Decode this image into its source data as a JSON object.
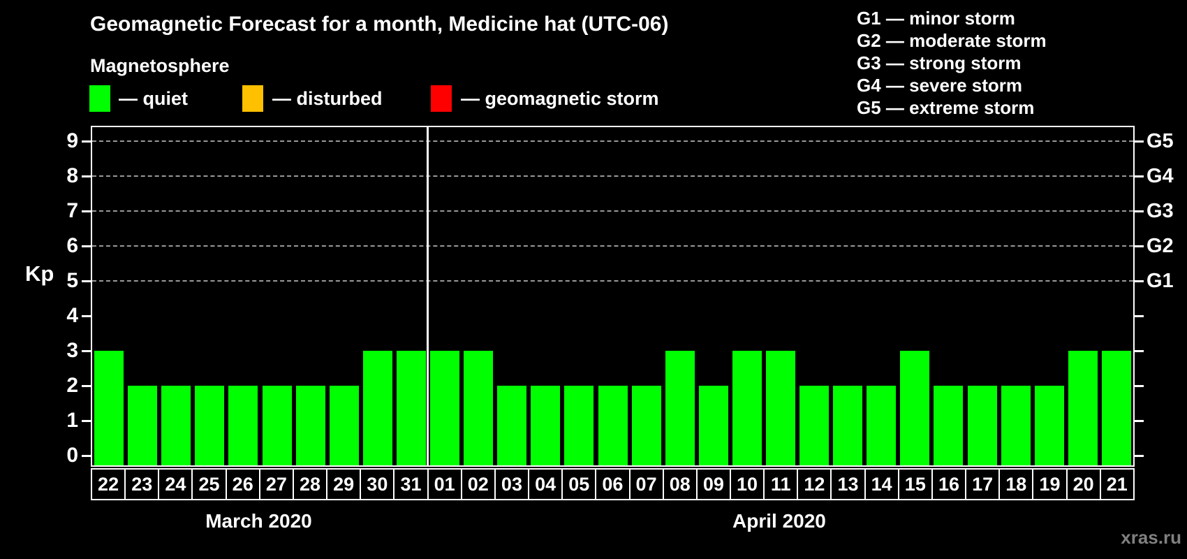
{
  "title": "Geomagnetic Forecast for a month, Medicine hat (UTC-06)",
  "legend": {
    "heading": "Magnetosphere",
    "items": [
      {
        "label": "— quiet",
        "color": "#00ff00"
      },
      {
        "label": "— disturbed",
        "color": "#ffc000"
      },
      {
        "label": "— geomagnetic storm",
        "color": "#ff0000"
      }
    ]
  },
  "g_legend": [
    "G1 — minor storm",
    "G2 — moderate storm",
    "G3 — strong storm",
    "G4 — severe storm",
    "G5 — extreme storm"
  ],
  "watermark": "xras.ru",
  "chart_data": {
    "type": "bar",
    "title": "Geomagnetic Forecast for a month, Medicine hat (UTC-06)",
    "ylabel": "Kp",
    "ylim": [
      0,
      9
    ],
    "yticks": [
      0,
      1,
      2,
      3,
      4,
      5,
      6,
      7,
      8,
      9
    ],
    "grid": "horizontal dashed gray lines at Kp 5 through 9",
    "legend_position": "top",
    "bar_color": "#00ff00",
    "background": "#000000",
    "axis_color": "#ffffff",
    "right_axis_labels": [
      {
        "value": 5,
        "label": "G1"
      },
      {
        "value": 6,
        "label": "G2"
      },
      {
        "value": 7,
        "label": "G3"
      },
      {
        "value": 8,
        "label": "G4"
      },
      {
        "value": 9,
        "label": "G5"
      }
    ],
    "categories": [
      "22",
      "23",
      "24",
      "25",
      "26",
      "27",
      "28",
      "29",
      "30",
      "31",
      "01",
      "02",
      "03",
      "04",
      "05",
      "06",
      "07",
      "08",
      "09",
      "10",
      "11",
      "12",
      "13",
      "14",
      "15",
      "16",
      "17",
      "18",
      "19",
      "20",
      "21"
    ],
    "values": [
      3,
      2,
      2,
      2,
      2,
      2,
      2,
      2,
      3,
      3,
      3,
      3,
      2,
      2,
      2,
      2,
      2,
      3,
      2,
      3,
      3,
      2,
      2,
      2,
      3,
      2,
      2,
      2,
      2,
      3,
      3
    ],
    "groups": [
      {
        "label": "March 2020",
        "start": 0,
        "count": 10
      },
      {
        "label": "April 2020",
        "start": 10,
        "count": 21
      }
    ]
  }
}
